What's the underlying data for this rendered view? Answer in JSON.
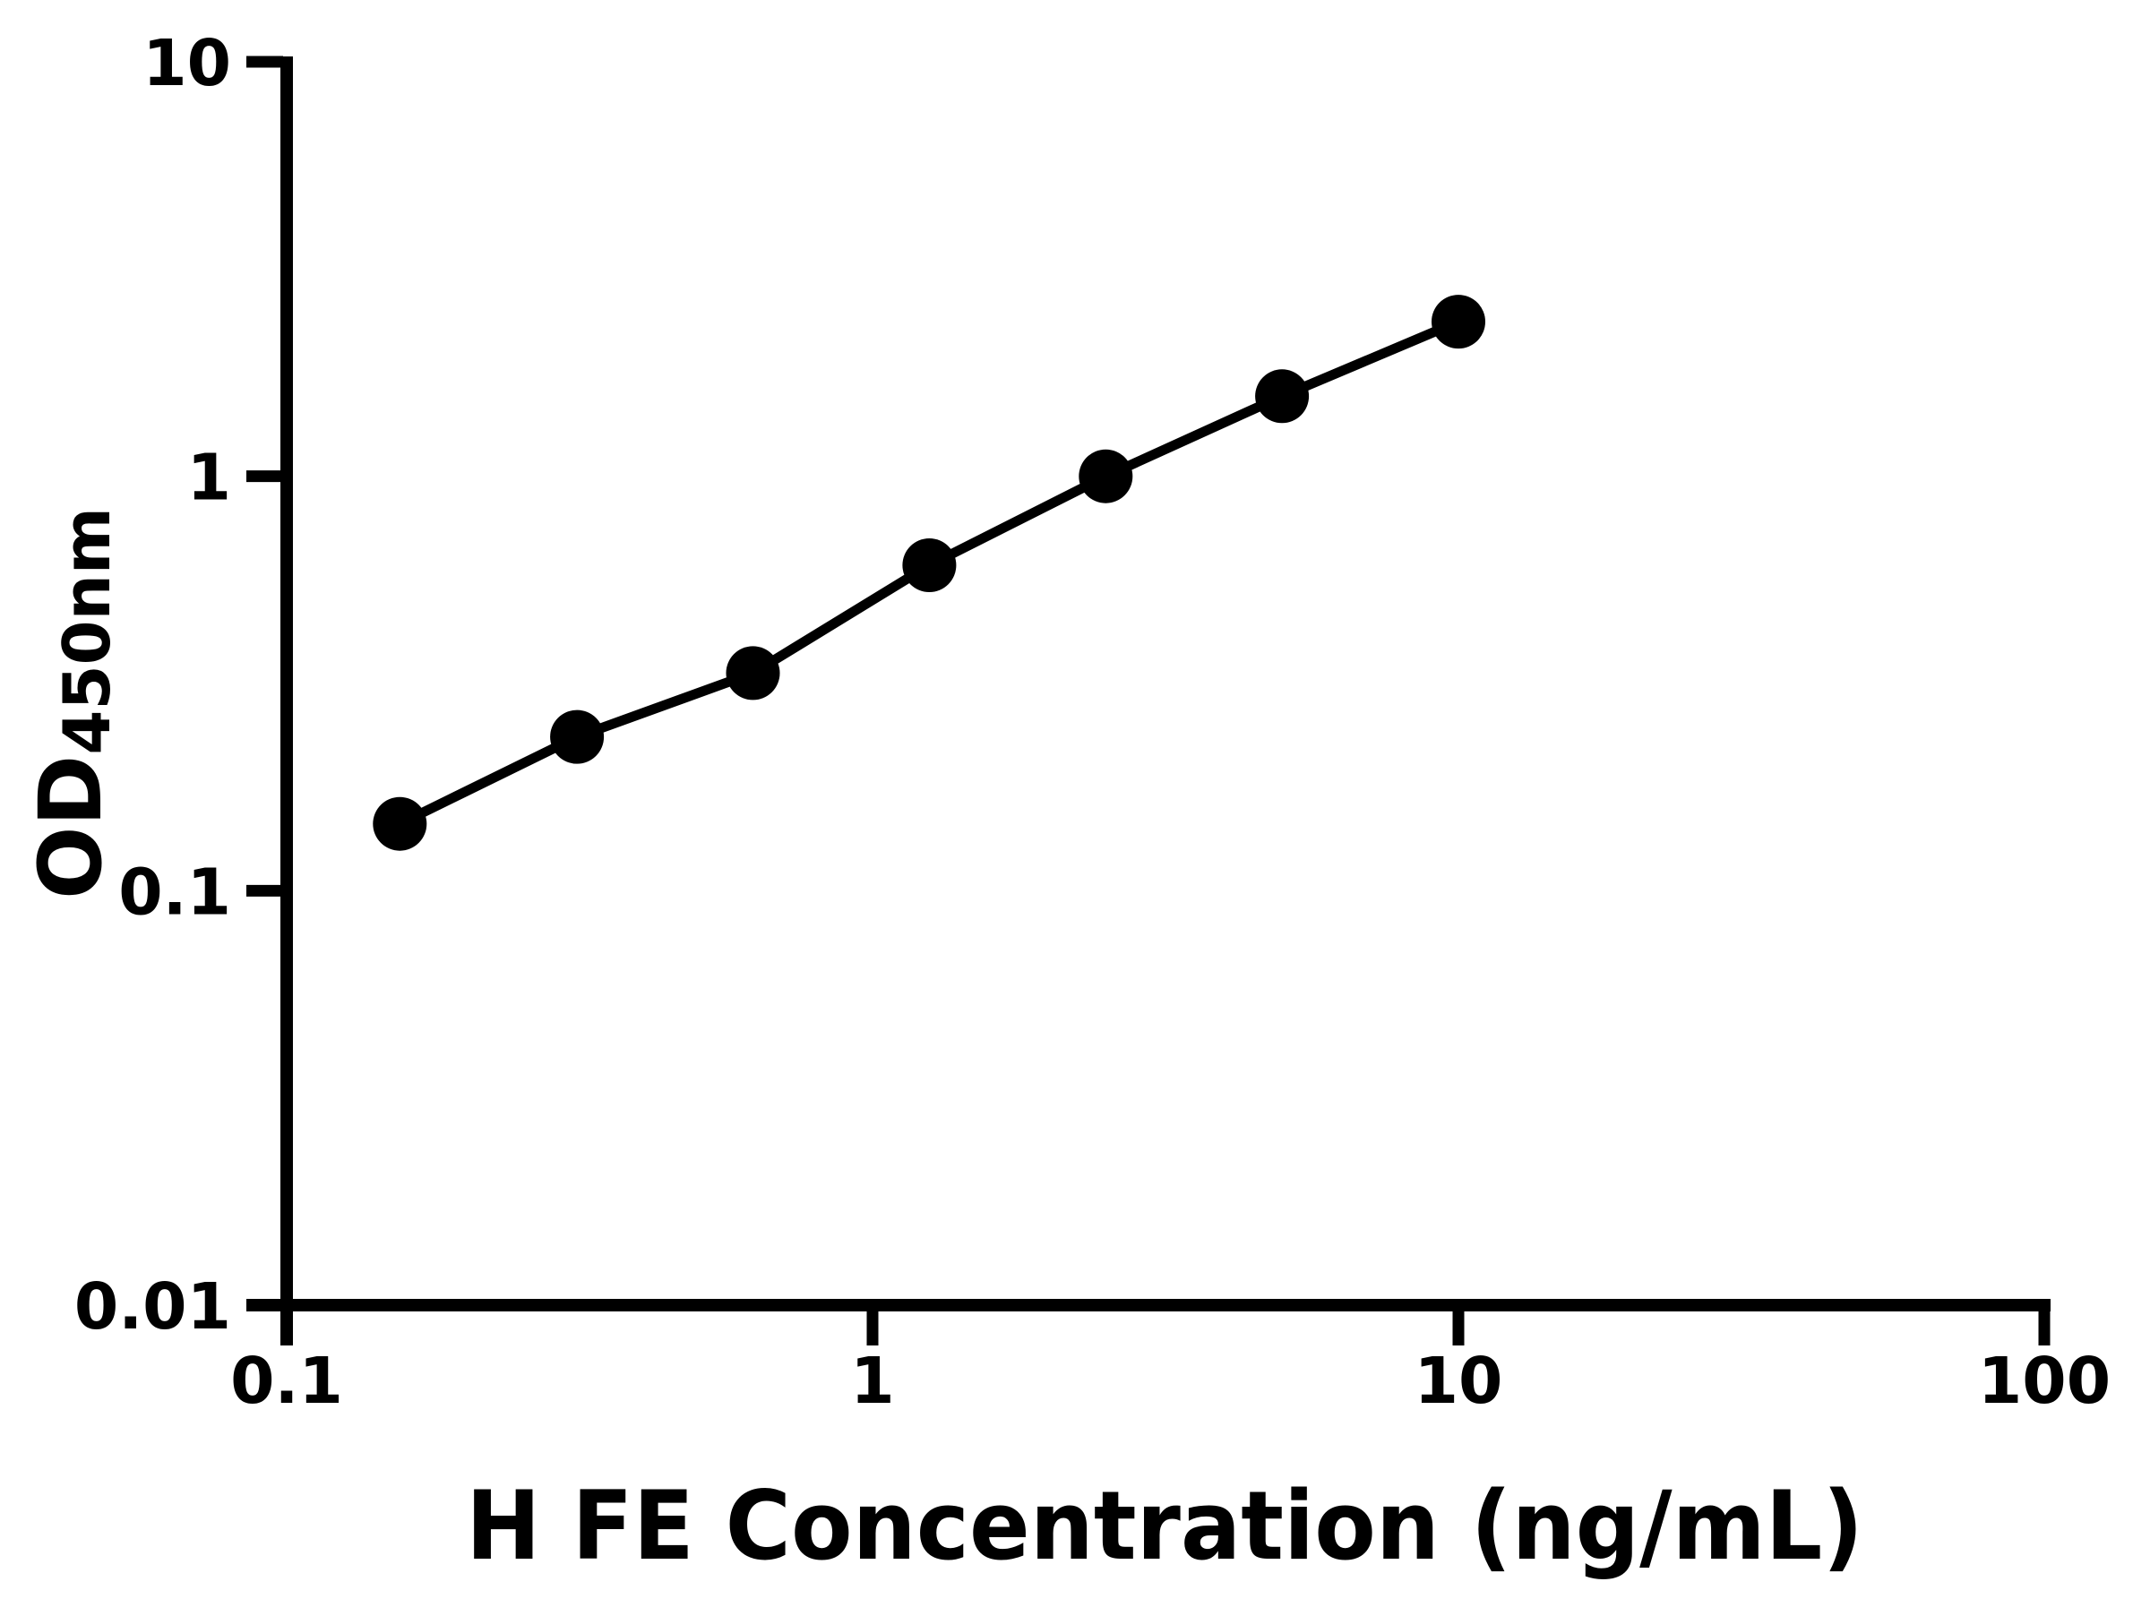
{
  "page": {
    "background_color": "#ffffff",
    "foreground_color": "#000000"
  },
  "chart_data": {
    "type": "line",
    "subtype": "log-log standard curve with filled circle markers",
    "title": "",
    "xlabel": "H FE Concentration (ng/mL)",
    "ylabel_main": "OD",
    "ylabel_sub": "450nm",
    "x_scale": "log",
    "y_scale": "log",
    "xlim": [
      0.1,
      100
    ],
    "ylim": [
      0.01,
      10
    ],
    "grid": false,
    "legend": "none",
    "x_tick_values": [
      0.1,
      1,
      10,
      100
    ],
    "x_tick_labels": [
      "0.1",
      "1",
      "10",
      "100"
    ],
    "y_tick_values": [
      10,
      1,
      0.1,
      0.01
    ],
    "y_tick_labels": [
      "10",
      "1",
      "0.1",
      "0.01"
    ],
    "series": [
      {
        "marker": "filled-circle",
        "color": "#000000",
        "x": [
          0.156,
          0.313,
          0.625,
          1.25,
          2.5,
          5,
          10
        ],
        "y": [
          0.145,
          0.235,
          0.335,
          0.61,
          1.0,
          1.56,
          2.36
        ]
      }
    ]
  }
}
